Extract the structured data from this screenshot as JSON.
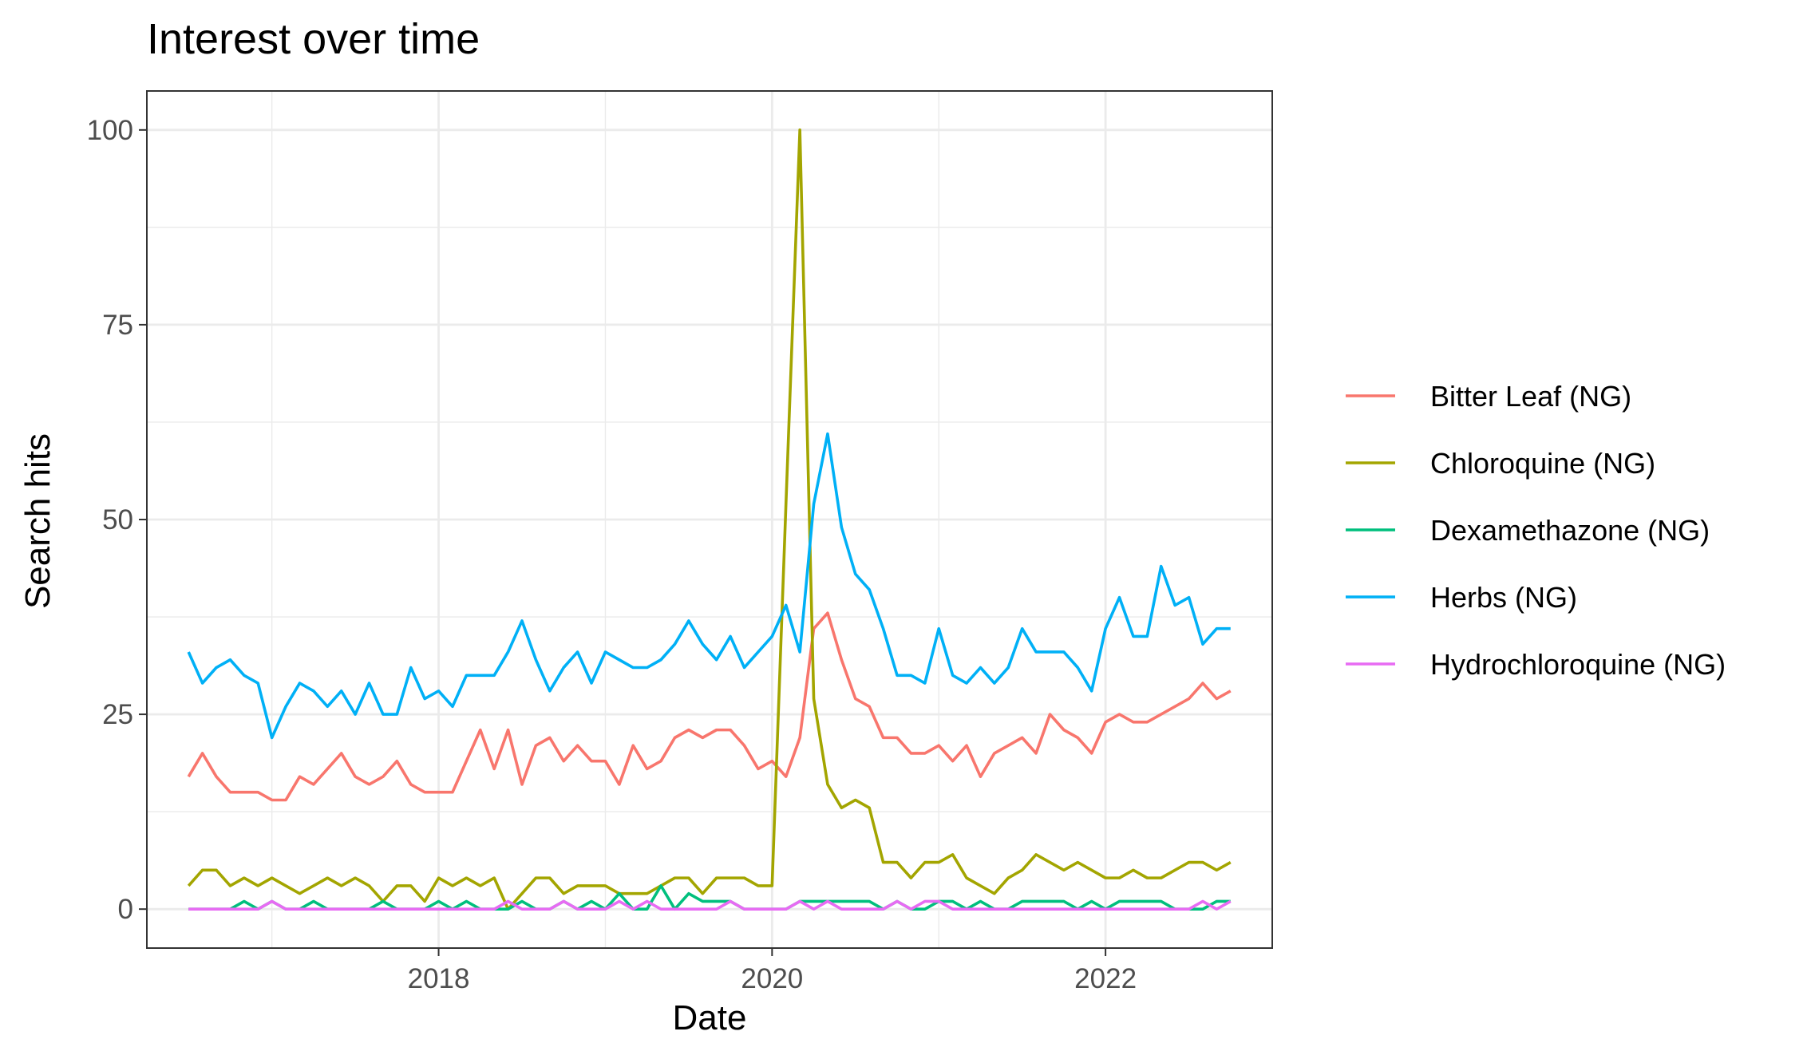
{
  "chart_data": {
    "type": "line",
    "title": "Interest over time",
    "xlabel": "Date",
    "ylabel": "Search hits",
    "x_start": "2016-07",
    "x_step": "month",
    "xlim": [
      "2016-04",
      "2023-01"
    ],
    "ylim": [
      -5,
      105
    ],
    "x_ticks": [
      "2018",
      "2020",
      "2022"
    ],
    "y_ticks": [
      0,
      25,
      50,
      75,
      100
    ],
    "grid": true,
    "legend_position": "right",
    "series": [
      {
        "name": "Bitter Leaf (NG)",
        "color": "#F8766D",
        "values": [
          17,
          20,
          17,
          15,
          15,
          15,
          14,
          14,
          17,
          16,
          18,
          20,
          17,
          16,
          17,
          19,
          16,
          15,
          15,
          15,
          19,
          23,
          18,
          23,
          16,
          21,
          22,
          19,
          21,
          19,
          19,
          16,
          21,
          18,
          19,
          22,
          23,
          22,
          23,
          23,
          21,
          18,
          19,
          17,
          22,
          36,
          38,
          32,
          27,
          26,
          22,
          22,
          20,
          20,
          21,
          19,
          21,
          17,
          20,
          21,
          22,
          20,
          25,
          23,
          22,
          20,
          24,
          25,
          24,
          24,
          25,
          26,
          27,
          29,
          27,
          28
        ]
      },
      {
        "name": "Chloroquine (NG)",
        "color": "#A3A500",
        "values": [
          3,
          5,
          5,
          3,
          4,
          3,
          4,
          3,
          2,
          3,
          4,
          3,
          4,
          3,
          1,
          3,
          3,
          1,
          4,
          3,
          4,
          3,
          4,
          0,
          2,
          4,
          4,
          2,
          3,
          3,
          3,
          2,
          2,
          2,
          3,
          4,
          4,
          2,
          4,
          4,
          4,
          3,
          3,
          52,
          100,
          27,
          16,
          13,
          14,
          13,
          6,
          6,
          4,
          6,
          6,
          7,
          4,
          3,
          2,
          4,
          5,
          7,
          6,
          5,
          6,
          5,
          4,
          4,
          5,
          4,
          4,
          5,
          6,
          6,
          5,
          6
        ]
      },
      {
        "name": "Dexamethazone (NG)",
        "color": "#00BF7D",
        "values": [
          0,
          0,
          0,
          0,
          1,
          0,
          1,
          0,
          0,
          1,
          0,
          0,
          0,
          0,
          1,
          0,
          0,
          0,
          1,
          0,
          1,
          0,
          0,
          0,
          1,
          0,
          0,
          1,
          0,
          1,
          0,
          2,
          0,
          0,
          3,
          0,
          2,
          1,
          1,
          1,
          0,
          0,
          0,
          0,
          1,
          1,
          1,
          1,
          1,
          1,
          0,
          1,
          0,
          0,
          1,
          1,
          0,
          1,
          0,
          0,
          1,
          1,
          1,
          1,
          0,
          1,
          0,
          1,
          1,
          1,
          1,
          0,
          0,
          0,
          1,
          1
        ]
      },
      {
        "name": "Herbs (NG)",
        "color": "#00B0F6",
        "values": [
          33,
          29,
          31,
          32,
          30,
          29,
          22,
          26,
          29,
          28,
          26,
          28,
          25,
          29,
          25,
          25,
          31,
          27,
          28,
          26,
          30,
          30,
          30,
          33,
          37,
          32,
          28,
          31,
          33,
          29,
          33,
          32,
          31,
          31,
          32,
          34,
          37,
          34,
          32,
          35,
          31,
          33,
          35,
          39,
          33,
          52,
          61,
          49,
          43,
          41,
          36,
          30,
          30,
          29,
          36,
          30,
          29,
          31,
          29,
          31,
          36,
          33,
          33,
          33,
          31,
          28,
          36,
          40,
          35,
          35,
          44,
          39,
          40,
          34,
          36,
          36
        ]
      },
      {
        "name": "Hydrochloroquine (NG)",
        "color": "#E76BF3",
        "values": [
          0,
          0,
          0,
          0,
          0,
          0,
          1,
          0,
          0,
          0,
          0,
          0,
          0,
          0,
          0,
          0,
          0,
          0,
          0,
          0,
          0,
          0,
          0,
          1,
          0,
          0,
          0,
          1,
          0,
          0,
          0,
          1,
          0,
          1,
          0,
          0,
          0,
          0,
          0,
          1,
          0,
          0,
          0,
          0,
          1,
          0,
          1,
          0,
          0,
          0,
          0,
          1,
          0,
          1,
          1,
          0,
          0,
          0,
          0,
          0,
          0,
          0,
          0,
          0,
          0,
          0,
          0,
          0,
          0,
          0,
          0,
          0,
          0,
          1,
          0,
          1
        ]
      }
    ]
  }
}
